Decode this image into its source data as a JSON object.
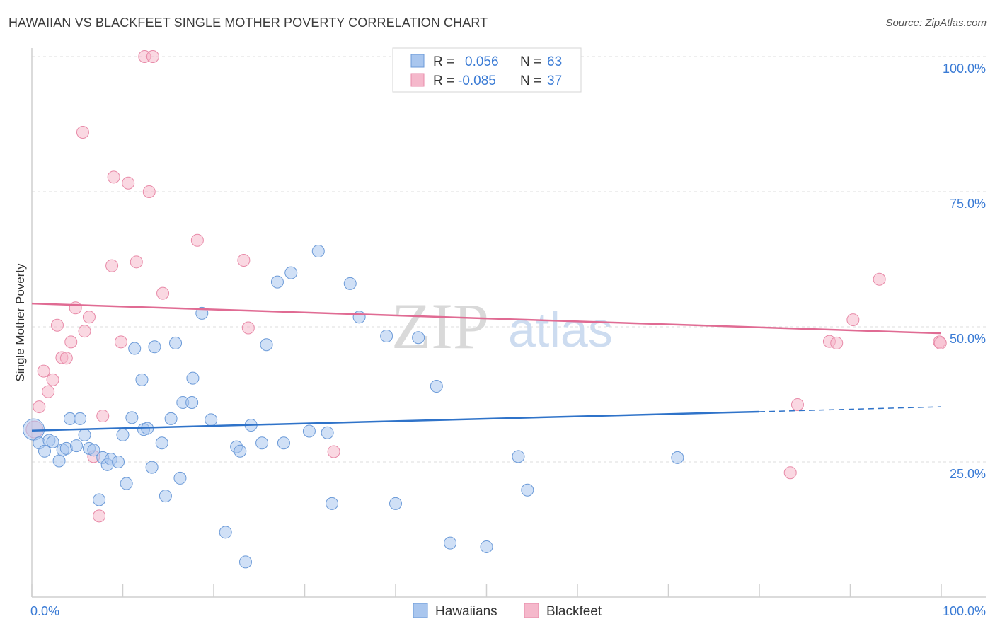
{
  "header": {
    "title": "HAWAIIAN VS BLACKFEET SINGLE MOTHER POVERTY CORRELATION CHART",
    "source": "Source: ZipAtlas.com"
  },
  "watermark": {
    "zip": "ZIP",
    "atlas": "atlas"
  },
  "colors": {
    "hawaiians_fill": "#a9c6ee",
    "hawaiians_stroke": "#6b9ad8",
    "hawaiians_line": "#2f73c9",
    "blackfeet_fill": "#f5b8cb",
    "blackfeet_stroke": "#e88aa8",
    "blackfeet_line": "#e06b93",
    "tick": "#3a7bd5",
    "grid": "#dddddd"
  },
  "chart_data": {
    "type": "scatter",
    "title": "HAWAIIAN VS BLACKFEET SINGLE MOTHER POVERTY CORRELATION CHART",
    "xlabel": "",
    "ylabel": "Single Mother Poverty",
    "xlim": [
      0,
      100
    ],
    "ylim": [
      0,
      104
    ],
    "x_tick_labels": [
      {
        "value": 0,
        "label": "0.0%"
      },
      {
        "value": 100,
        "label": "100.0%"
      }
    ],
    "y_tick_labels": [
      {
        "value": 25,
        "label": "25.0%"
      },
      {
        "value": 50,
        "label": "50.0%"
      },
      {
        "value": 75,
        "label": "75.0%"
      },
      {
        "value": 100,
        "label": "100.0%"
      }
    ],
    "legend_top": [
      {
        "series": "Hawaiians",
        "r_label": "R =",
        "r_value": "0.056",
        "n_label": "N =",
        "n_value": "63"
      },
      {
        "series": "Blackfeet",
        "r_label": "R =",
        "r_value": "-0.085",
        "n_label": "N =",
        "n_value": "37"
      }
    ],
    "legend_bottom": [
      "Hawaiians",
      "Blackfeet"
    ],
    "series": [
      {
        "name": "Hawaiians",
        "trend": {
          "x0": 0,
          "y0": 30.8,
          "x1": 80,
          "y1": 34.3,
          "dash_x1": 100,
          "dash_y1": 35.2
        },
        "points": [
          [
            0.2,
            31.0
          ],
          [
            0.8,
            28.5
          ],
          [
            1.4,
            27.0
          ],
          [
            1.9,
            29.0
          ],
          [
            2.3,
            28.7
          ],
          [
            3.0,
            25.2
          ],
          [
            3.4,
            27.2
          ],
          [
            3.8,
            27.5
          ],
          [
            4.2,
            33.0
          ],
          [
            4.9,
            28.0
          ],
          [
            5.3,
            33.0
          ],
          [
            5.8,
            30.0
          ],
          [
            6.3,
            27.5
          ],
          [
            6.8,
            27.2
          ],
          [
            7.4,
            18.0
          ],
          [
            7.8,
            25.8
          ],
          [
            8.3,
            24.5
          ],
          [
            8.7,
            25.5
          ],
          [
            9.5,
            25.0
          ],
          [
            10.0,
            30.0
          ],
          [
            10.4,
            21.0
          ],
          [
            11.0,
            33.2
          ],
          [
            11.3,
            46.0
          ],
          [
            12.1,
            40.2
          ],
          [
            12.3,
            31.0
          ],
          [
            12.7,
            31.2
          ],
          [
            13.2,
            24.0
          ],
          [
            13.5,
            46.3
          ],
          [
            14.3,
            28.5
          ],
          [
            14.7,
            18.7
          ],
          [
            15.3,
            33.0
          ],
          [
            15.8,
            47.0
          ],
          [
            16.3,
            22.0
          ],
          [
            16.6,
            36.0
          ],
          [
            17.6,
            36.0
          ],
          [
            17.7,
            40.5
          ],
          [
            18.7,
            52.5
          ],
          [
            19.7,
            32.8
          ],
          [
            21.3,
            12.0
          ],
          [
            22.5,
            27.8
          ],
          [
            22.9,
            27.0
          ],
          [
            23.5,
            6.5
          ],
          [
            24.1,
            31.8
          ],
          [
            25.3,
            28.5
          ],
          [
            25.8,
            46.7
          ],
          [
            27.0,
            58.3
          ],
          [
            27.7,
            28.5
          ],
          [
            28.5,
            60.0
          ],
          [
            30.5,
            30.7
          ],
          [
            31.5,
            64.0
          ],
          [
            32.5,
            30.4
          ],
          [
            33.0,
            17.3
          ],
          [
            35.0,
            58.0
          ],
          [
            36.0,
            51.8
          ],
          [
            39.0,
            48.3
          ],
          [
            40.0,
            17.3
          ],
          [
            42.5,
            48.0
          ],
          [
            44.5,
            39.0
          ],
          [
            46.0,
            10.0
          ],
          [
            50.0,
            9.3
          ],
          [
            53.5,
            26.0
          ],
          [
            54.5,
            19.8
          ],
          [
            71.0,
            25.8
          ]
        ]
      },
      {
        "name": "Blackfeet",
        "trend": {
          "x0": 0,
          "y0": 54.3,
          "x1": 100,
          "y1": 48.8
        },
        "points": [
          [
            0.3,
            31.0
          ],
          [
            0.8,
            35.2
          ],
          [
            1.3,
            41.8
          ],
          [
            1.8,
            38.0
          ],
          [
            2.3,
            40.2
          ],
          [
            2.8,
            50.3
          ],
          [
            3.3,
            44.3
          ],
          [
            3.8,
            44.2
          ],
          [
            4.3,
            47.2
          ],
          [
            4.8,
            53.5
          ],
          [
            5.8,
            49.2
          ],
          [
            6.3,
            51.8
          ],
          [
            6.8,
            26.0
          ],
          [
            7.4,
            15.0
          ],
          [
            7.8,
            33.5
          ],
          [
            5.6,
            86.0
          ],
          [
            8.8,
            61.3
          ],
          [
            9.0,
            77.7
          ],
          [
            9.8,
            47.2
          ],
          [
            10.6,
            76.6
          ],
          [
            11.5,
            62.0
          ],
          [
            12.4,
            100.0
          ],
          [
            13.3,
            100.0
          ],
          [
            14.4,
            56.2
          ],
          [
            12.9,
            75.0
          ],
          [
            18.2,
            66.0
          ],
          [
            23.3,
            62.3
          ],
          [
            23.8,
            49.8
          ],
          [
            33.2,
            26.9
          ],
          [
            83.4,
            23.0
          ],
          [
            84.2,
            35.6
          ],
          [
            87.7,
            47.3
          ],
          [
            88.5,
            47.0
          ],
          [
            90.3,
            51.3
          ],
          [
            93.2,
            58.8
          ],
          [
            99.8,
            47.2
          ],
          [
            99.9,
            47.0
          ]
        ]
      }
    ]
  }
}
